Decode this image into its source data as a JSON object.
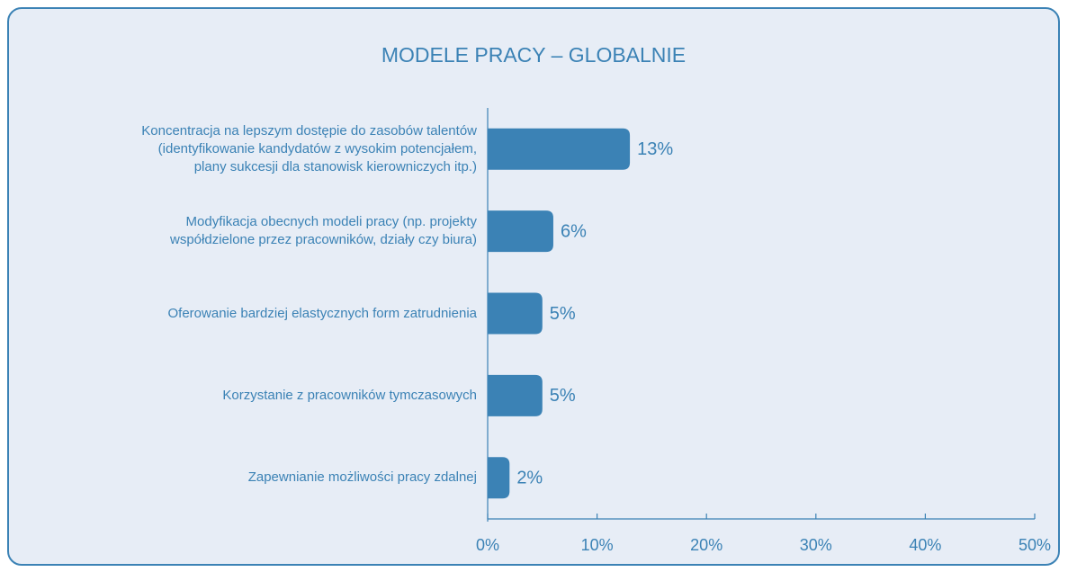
{
  "chart_data": {
    "type": "barh",
    "title": "MODELE PRACY – GLOBALNIE",
    "categories": [
      "Koncentracja na lepszym dostępie do zasobów talentów\n(identyfikowanie kandydatów z wysokim potencjałem,\nplany sukcesji dla stanowisk kierowniczych itp.)",
      "Modyfikacja obecnych modeli pracy (np. projekty\nwspółdzielone przez pracowników, działy czy biura)",
      "Oferowanie bardziej elastycznych form zatrudnienia",
      "Korzystanie z pracowników tymczasowych",
      "Zapewnianie możliwości pracy zdalnej"
    ],
    "values": [
      13,
      6,
      5,
      5,
      2
    ],
    "value_labels": [
      "13%",
      "6%",
      "5%",
      "5%",
      "2%"
    ],
    "color": "#3b82b5",
    "xlim": [
      0,
      50
    ],
    "xticks": [
      {
        "value": 0,
        "label": "0%"
      },
      {
        "value": 10,
        "label": "10%"
      },
      {
        "value": 20,
        "label": "20%"
      },
      {
        "value": 30,
        "label": "30%"
      },
      {
        "value": 40,
        "label": "40%"
      },
      {
        "value": 50,
        "label": "50%"
      }
    ]
  }
}
